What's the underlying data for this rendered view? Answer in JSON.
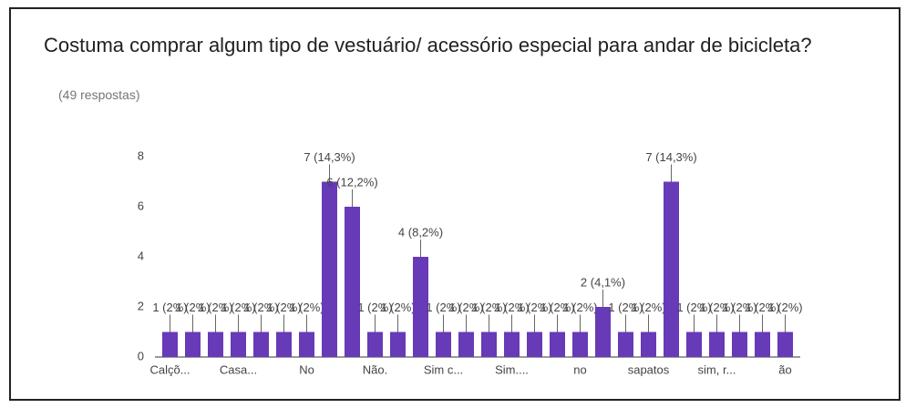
{
  "chart_data": {
    "type": "bar",
    "title": "Costuma comprar algum tipo de vestuário/ acessório especial para andar de bicicleta?",
    "subtitle": "(49 respostas)",
    "categories": [
      "Calçõ...",
      null,
      null,
      "Casa...",
      null,
      null,
      "No",
      null,
      null,
      "Não.",
      null,
      null,
      "Sim c...",
      null,
      null,
      "Sim....",
      null,
      null,
      "no",
      null,
      null,
      "sapatos",
      null,
      null,
      "sim, r...",
      null,
      null,
      "ão"
    ],
    "values": [
      1,
      1,
      1,
      1,
      1,
      1,
      1,
      7,
      6,
      1,
      1,
      4,
      1,
      1,
      1,
      1,
      1,
      1,
      1,
      2,
      1,
      1,
      7,
      1,
      1,
      1,
      1,
      1
    ],
    "value_labels": [
      "1 (2%)",
      "1 (2%)",
      "1 (2%)",
      "1 (2%)",
      "1 (2%)",
      "1 (2%)",
      "1 (2%)",
      "7 (14,3%)",
      "6 (12,2%)",
      "1 (2%)",
      "1 (2%)",
      "4 (8,2%)",
      "1 (2%)",
      "1 (2%)",
      "1 (2%)",
      "1 (2%)",
      "1 (2%)",
      "1 (2%)",
      "1 (2%)",
      "2 (4,1%)",
      "1 (2%)",
      "1 (2%)",
      "7 (14,3%)",
      "1 (2%)",
      "1 (2%)",
      "1 (2%)",
      "1 (2%)",
      "1 (2%)"
    ],
    "color": "#673ab7",
    "ylim": [
      0,
      8
    ],
    "yticks": [
      0,
      2,
      4,
      6,
      8
    ]
  }
}
